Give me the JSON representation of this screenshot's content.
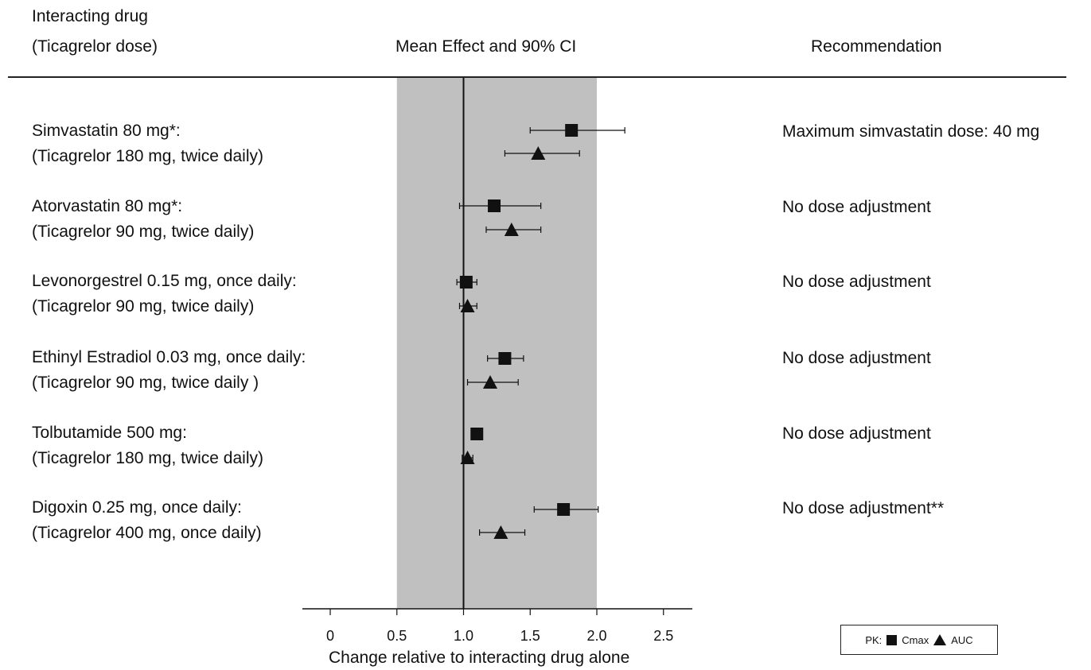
{
  "header": {
    "col1_line1": "Interacting drug",
    "col1_line2": "(Ticagrelor dose)",
    "col2": "Mean Effect and 90% CI",
    "col3": "Recommendation"
  },
  "rows": [
    {
      "drug": "Simvastatin 80 mg*:",
      "dose": "(Ticagrelor 180 mg, twice daily)",
      "recommendation": "Maximum simvastatin dose: 40 mg"
    },
    {
      "drug": "Atorvastatin 80 mg*:",
      "dose": "(Ticagrelor 90 mg, twice daily)",
      "recommendation": "No dose adjustment"
    },
    {
      "drug": "Levonorgestrel 0.15 mg, once daily:",
      "dose": "(Ticagrelor 90 mg, twice daily)",
      "recommendation": "No dose adjustment"
    },
    {
      "drug": "Ethinyl Estradiol 0.03 mg, once daily:",
      "dose": "(Ticagrelor 90 mg, twice daily )",
      "recommendation": "No dose adjustment"
    },
    {
      "drug": "Tolbutamide 500 mg:",
      "dose": "(Ticagrelor 180 mg, twice daily)",
      "recommendation": "No dose adjustment"
    },
    {
      "drug": "Digoxin 0.25 mg, once daily:",
      "dose": "(Ticagrelor 400 mg, once daily)",
      "recommendation": "No dose adjustment**"
    }
  ],
  "legend": {
    "prefix": "PK:",
    "cmax": "Cmax",
    "auc": "AUC"
  },
  "chart_data": {
    "type": "scatter",
    "title": "Mean Effect and 90% CI",
    "xlabel": "Change relative to interacting drug alone",
    "ylabel": "",
    "xlim": [
      -0.2,
      2.7
    ],
    "xticks": [
      0,
      0.5,
      1.0,
      1.5,
      2.0,
      2.5
    ],
    "xtick_labels": [
      "0",
      "0.5",
      "1.0",
      "1.5",
      "2.0",
      "2.5"
    ],
    "reference_line": 1.0,
    "shaded_band": [
      0.5,
      2.0
    ],
    "categories": [
      "Simvastatin",
      "Atorvastatin",
      "Levonorgestrel",
      "Ethinyl Estradiol",
      "Tolbutamide",
      "Digoxin"
    ],
    "series": [
      {
        "name": "Cmax",
        "marker": "square",
        "values": [
          1.81,
          1.23,
          1.02,
          1.31,
          1.1,
          1.75
        ],
        "ci_low": [
          1.5,
          0.97,
          0.95,
          1.18,
          null,
          1.53
        ],
        "ci_high": [
          2.21,
          1.58,
          1.1,
          1.45,
          null,
          2.01
        ]
      },
      {
        "name": "AUC",
        "marker": "triangle",
        "values": [
          1.56,
          1.36,
          1.03,
          1.2,
          1.03,
          1.28
        ],
        "ci_low": [
          1.31,
          1.17,
          0.97,
          1.03,
          0.99,
          1.12
        ],
        "ci_high": [
          1.87,
          1.58,
          1.1,
          1.41,
          1.07,
          1.46
        ]
      }
    ],
    "colors": {
      "band": "#c0c0c0",
      "mark": "#111111"
    }
  }
}
